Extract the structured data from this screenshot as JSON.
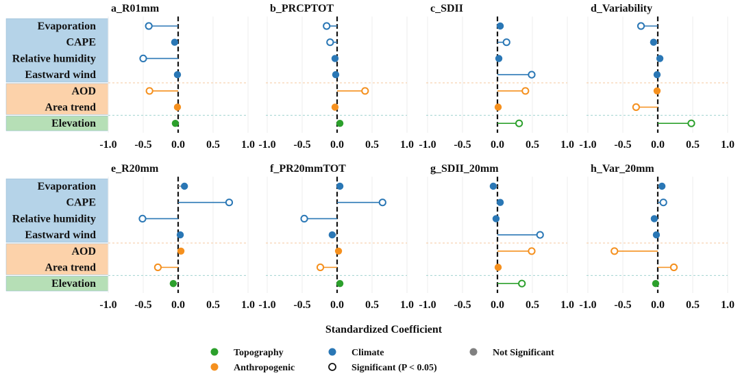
{
  "chart_data": {
    "type": "lollipop",
    "x_label": "Standardized Coefficient",
    "xlim": [
      -1.0,
      1.0
    ],
    "x_ticks": [
      "-1.0",
      "-0.5",
      "0.0",
      "0.5",
      "1.0"
    ],
    "x_tick_values": [
      -1.0,
      -0.5,
      0.0,
      0.5,
      1.0
    ],
    "colors": {
      "Climate": "#2a77b5",
      "Anthropogenic": "#f5901e",
      "Topography": "#2ca02c",
      "NotSignificant": "#808080",
      "ClimateBand": "#b5d3e8",
      "AnthropogenicBand": "#fcd2aa",
      "TopographyBand": "#b6dfb6"
    },
    "variables": [
      {
        "name": "Evaporation",
        "group": "Climate"
      },
      {
        "name": "CAPE",
        "group": "Climate"
      },
      {
        "name": "Relative humidity",
        "group": "Climate"
      },
      {
        "name": "Eastward wind",
        "group": "Climate"
      },
      {
        "name": "AOD",
        "group": "Anthropogenic"
      },
      {
        "name": "Area trend",
        "group": "Anthropogenic"
      },
      {
        "name": "Elevation",
        "group": "Topography"
      }
    ],
    "panels": [
      {
        "title": "a_R01mm",
        "values": [
          -0.42,
          -0.05,
          -0.5,
          -0.01,
          -0.41,
          -0.01,
          -0.04
        ],
        "significant": [
          true,
          false,
          true,
          false,
          true,
          false,
          false
        ]
      },
      {
        "title": "b_PRCPTOT",
        "values": [
          -0.15,
          -0.1,
          -0.03,
          -0.02,
          0.4,
          -0.03,
          0.04
        ],
        "significant": [
          true,
          true,
          false,
          false,
          true,
          false,
          false
        ]
      },
      {
        "title": "c_SDII",
        "values": [
          0.04,
          0.13,
          0.02,
          0.49,
          0.4,
          0.01,
          0.31
        ],
        "significant": [
          false,
          true,
          false,
          true,
          true,
          false,
          true
        ]
      },
      {
        "title": "d_Variability",
        "values": [
          -0.24,
          -0.06,
          0.03,
          -0.01,
          -0.01,
          -0.31,
          0.48
        ],
        "significant": [
          true,
          false,
          false,
          false,
          false,
          true,
          true
        ]
      },
      {
        "title": "e_R20mm",
        "values": [
          0.09,
          0.73,
          -0.51,
          0.03,
          0.04,
          -0.29,
          -0.07
        ],
        "significant": [
          false,
          true,
          true,
          false,
          false,
          true,
          false
        ]
      },
      {
        "title": "f_PR20mmTOT",
        "values": [
          0.04,
          0.65,
          -0.47,
          -0.07,
          0.02,
          -0.24,
          0.04
        ],
        "significant": [
          false,
          true,
          true,
          false,
          false,
          true,
          false
        ]
      },
      {
        "title": "g_SDII_20mm",
        "values": [
          -0.06,
          0.04,
          -0.02,
          0.61,
          0.49,
          0.01,
          0.35
        ],
        "significant": [
          false,
          false,
          false,
          true,
          true,
          false,
          true
        ]
      },
      {
        "title": "h_Var_20mm",
        "values": [
          0.06,
          0.08,
          -0.05,
          -0.02,
          -0.62,
          0.23,
          -0.03
        ],
        "significant": [
          false,
          true,
          false,
          false,
          true,
          true,
          false
        ]
      }
    ],
    "legend": [
      {
        "label": "Topography",
        "kind": "Topography"
      },
      {
        "label": "Climate",
        "kind": "Climate"
      },
      {
        "label": "Not Significant",
        "kind": "NotSignificant"
      },
      {
        "label": "Anthropogenic",
        "kind": "Anthropogenic"
      },
      {
        "label": "Significant (P < 0.05)",
        "kind": "Significant"
      }
    ]
  }
}
